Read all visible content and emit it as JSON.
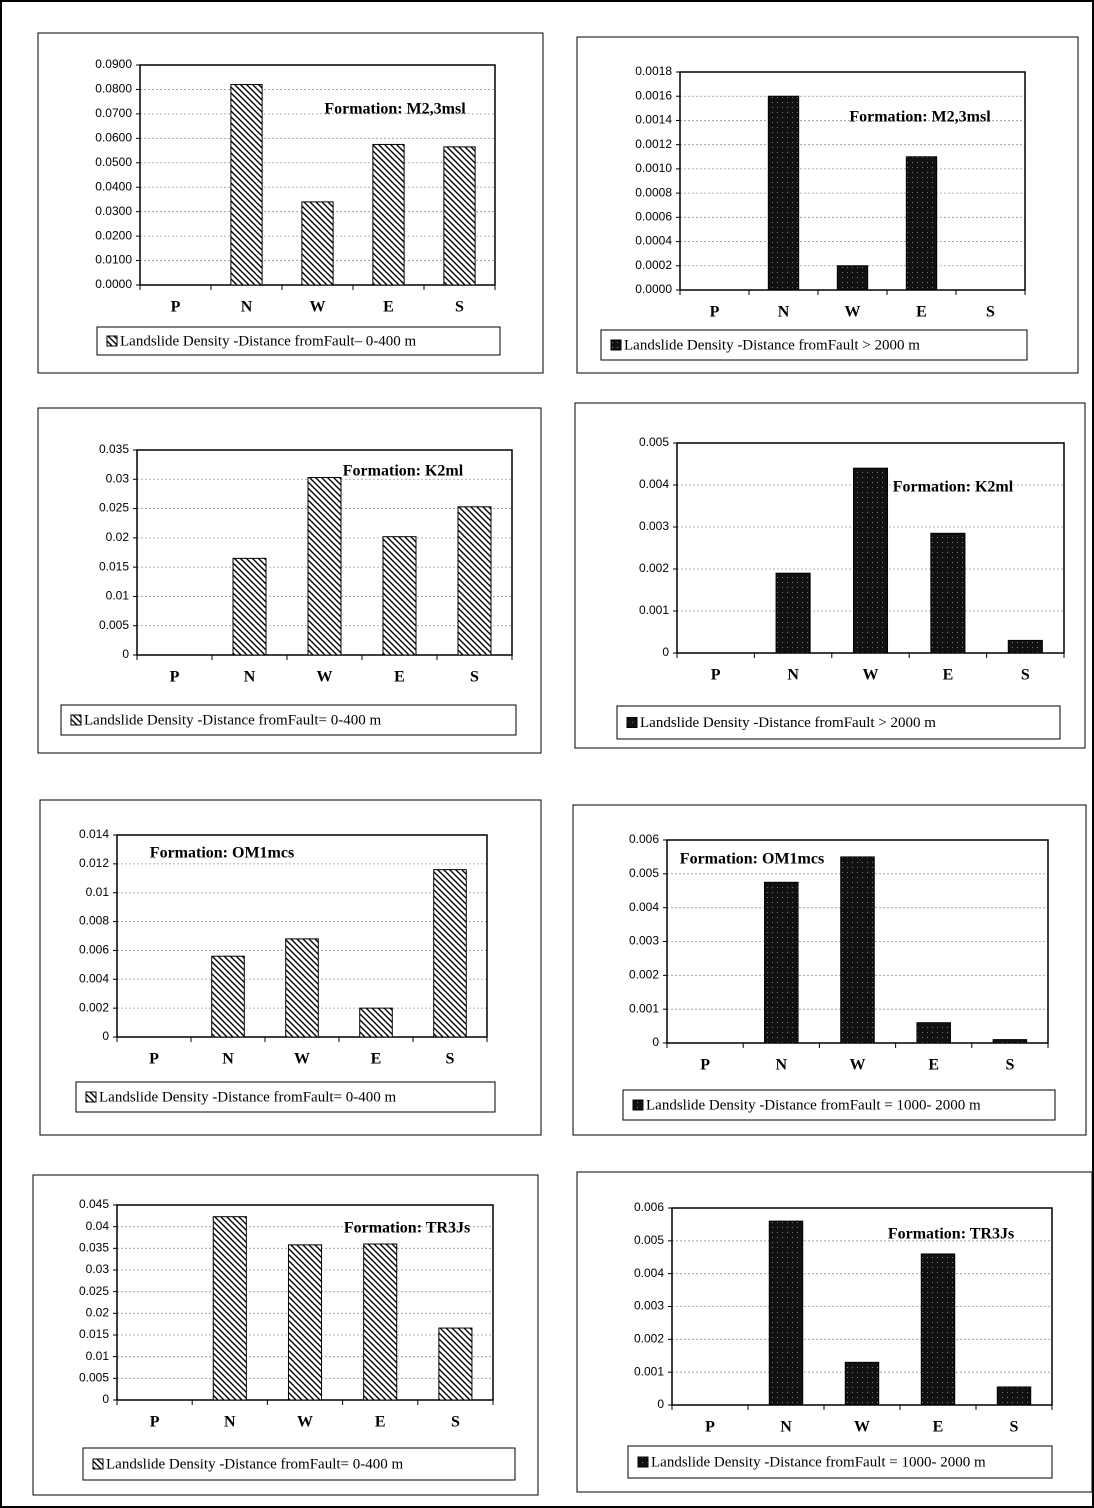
{
  "chart_data": [
    {
      "type": "bar",
      "annotation": "Formation: M2,3msl",
      "categories": [
        "P",
        "N",
        "W",
        "E",
        "S"
      ],
      "series": [
        {
          "name": "Landslide Density -Distance fromFault– 0-400 m",
          "color": "#000000",
          "pattern": "hatch",
          "values": [
            0,
            0.082,
            0.034,
            0.0575,
            0.0565
          ]
        }
      ],
      "ylim": [
        0,
        0.09
      ],
      "yticks": [
        {
          "value": 0,
          "label": "0.0000"
        },
        {
          "value": 0.01,
          "label": "0.0100"
        },
        {
          "value": 0.02,
          "label": "0.0200"
        },
        {
          "value": 0.03,
          "label": "0.0300"
        },
        {
          "value": 0.04,
          "label": "0.0400"
        },
        {
          "value": 0.05,
          "label": "0.0500"
        },
        {
          "value": 0.06,
          "label": "0.0600"
        },
        {
          "value": 0.07,
          "label": "0.0700"
        },
        {
          "value": 0.08,
          "label": "0.0800"
        },
        {
          "value": 0.09,
          "label": "0.0900"
        }
      ],
      "grid": true
    },
    {
      "type": "bar",
      "annotation": "Formation: M2,3msl",
      "categories": [
        "P",
        "N",
        "W",
        "E",
        "S"
      ],
      "series": [
        {
          "name": "Landslide Density -Distance fromFault > 2000 m",
          "color": "#000000",
          "pattern": "dots",
          "values": [
            0,
            0.0016,
            0.0002,
            0.0011,
            0
          ]
        }
      ],
      "ylim": [
        0,
        0.0018
      ],
      "yticks": [
        {
          "value": 0,
          "label": "0.0000"
        },
        {
          "value": 0.0002,
          "label": "0.0002"
        },
        {
          "value": 0.0004,
          "label": "0.0004"
        },
        {
          "value": 0.0006,
          "label": "0.0006"
        },
        {
          "value": 0.0008,
          "label": "0.0008"
        },
        {
          "value": 0.001,
          "label": "0.0010"
        },
        {
          "value": 0.0012,
          "label": "0.0012"
        },
        {
          "value": 0.0014,
          "label": "0.0014"
        },
        {
          "value": 0.0016,
          "label": "0.0016"
        },
        {
          "value": 0.0018,
          "label": "0.0018"
        }
      ],
      "grid": true
    },
    {
      "type": "bar",
      "annotation": "Formation: K2ml",
      "categories": [
        "P",
        "N",
        "W",
        "E",
        "S"
      ],
      "series": [
        {
          "name": "Landslide Density -Distance fromFault= 0-400 m",
          "color": "#000000",
          "pattern": "hatch",
          "values": [
            0,
            0.0165,
            0.0303,
            0.0202,
            0.0253
          ]
        }
      ],
      "ylim": [
        0,
        0.035
      ],
      "yticks": [
        0,
        0.005,
        0.01,
        0.015,
        0.02,
        0.025,
        0.03,
        0.035
      ],
      "grid": true
    },
    {
      "type": "bar",
      "annotation": "Formation: K2ml",
      "categories": [
        "P",
        "N",
        "W",
        "E",
        "S"
      ],
      "series": [
        {
          "name": "Landslide Density -Distance fromFault > 2000 m",
          "color": "#000000",
          "pattern": "dots",
          "values": [
            0,
            0.0019,
            0.0044,
            0.00285,
            0.0003
          ]
        }
      ],
      "ylim": [
        0,
        0.005
      ],
      "yticks": [
        0,
        0.001,
        0.002,
        0.003,
        0.004,
        0.005
      ],
      "grid": true
    },
    {
      "type": "bar",
      "annotation": "Formation: OM1mcs",
      "categories": [
        "P",
        "N",
        "W",
        "E",
        "S"
      ],
      "series": [
        {
          "name": "Landslide Density -Distance fromFault= 0-400 m",
          "color": "#000000",
          "pattern": "hatch",
          "values": [
            0,
            0.0056,
            0.0068,
            0.002,
            0.0116
          ]
        }
      ],
      "ylim": [
        0,
        0.014
      ],
      "yticks": [
        0,
        0.002,
        0.004,
        0.006,
        0.008,
        0.01,
        0.012,
        0.014
      ],
      "grid": true
    },
    {
      "type": "bar",
      "annotation": "Formation: OM1mcs",
      "categories": [
        "P",
        "N",
        "W",
        "E",
        "S"
      ],
      "series": [
        {
          "name": "Landslide Density -Distance fromFault = 1000- 2000 m",
          "color": "#000000",
          "pattern": "dots",
          "values": [
            0,
            0.00475,
            0.0055,
            0.0006,
            0.0001
          ]
        }
      ],
      "ylim": [
        0,
        0.006
      ],
      "yticks": [
        0,
        0.001,
        0.002,
        0.003,
        0.004,
        0.005,
        0.006
      ],
      "grid": true
    },
    {
      "type": "bar",
      "annotation": "Formation: TR3Js",
      "categories": [
        "P",
        "N",
        "W",
        "E",
        "S"
      ],
      "series": [
        {
          "name": "Landslide Density -Distance fromFault= 0-400 m",
          "color": "#000000",
          "pattern": "hatch",
          "values": [
            0,
            0.0423,
            0.0358,
            0.036,
            0.0166
          ]
        }
      ],
      "ylim": [
        0,
        0.045
      ],
      "yticks": [
        0,
        0.005,
        0.01,
        0.015,
        0.02,
        0.025,
        0.03,
        0.035,
        0.04,
        0.045
      ],
      "grid": true
    },
    {
      "type": "bar",
      "annotation": "Formation: TR3Js",
      "categories": [
        "P",
        "N",
        "W",
        "E",
        "S"
      ],
      "series": [
        {
          "name": "Landslide Density -Distance fromFault = 1000- 2000 m",
          "color": "#000000",
          "pattern": "dots",
          "values": [
            0,
            0.0056,
            0.0013,
            0.0046,
            0.00055
          ]
        }
      ],
      "ylim": [
        0,
        0.006
      ],
      "yticks": [
        0,
        0.001,
        0.002,
        0.003,
        0.004,
        0.005,
        0.006
      ],
      "grid": true
    }
  ]
}
